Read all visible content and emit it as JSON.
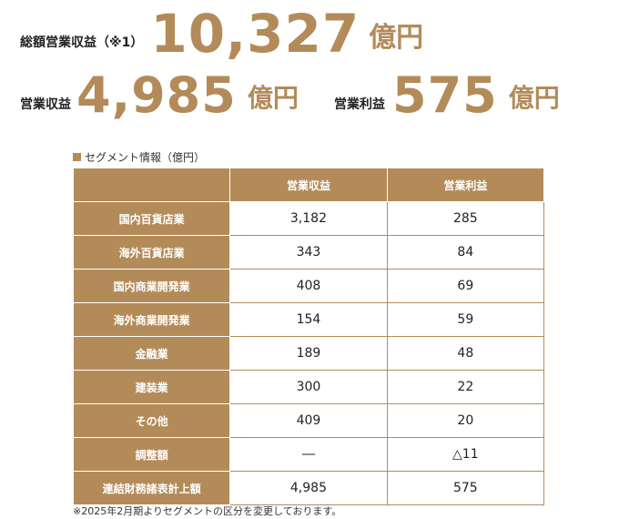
{
  "summary": {
    "total_label": "総額営業収益（※1）",
    "total_value": "10,327",
    "total_unit": "億円",
    "revenue_label": "営業収益",
    "revenue_value": "4,985",
    "revenue_unit": "億円",
    "profit_label": "営業利益",
    "profit_value": "575",
    "profit_unit": "億円"
  },
  "segment": {
    "heading": "セグメント情報（億円）",
    "columns": [
      "",
      "営業収益",
      "営業利益"
    ],
    "rows": [
      {
        "name": "国内百貨店業",
        "revenue": "3,182",
        "profit": "285"
      },
      {
        "name": "海外百貨店業",
        "revenue": "343",
        "profit": "84"
      },
      {
        "name": "国内商業開発業",
        "revenue": "408",
        "profit": "69"
      },
      {
        "name": "海外商業開発業",
        "revenue": "154",
        "profit": "59"
      },
      {
        "name": "金融業",
        "revenue": "189",
        "profit": "48"
      },
      {
        "name": "建装業",
        "revenue": "300",
        "profit": "22"
      },
      {
        "name": "その他",
        "revenue": "409",
        "profit": "20"
      },
      {
        "name": "調整額",
        "revenue": "―",
        "profit": "△11"
      },
      {
        "name": "連結財務諸表計上額",
        "revenue": "4,985",
        "profit": "575"
      }
    ]
  },
  "footnote": "※2025年2月期よりセグメントの区分を変更しております。",
  "colors": {
    "accent": "#b38b59",
    "negative": "#e02020"
  }
}
